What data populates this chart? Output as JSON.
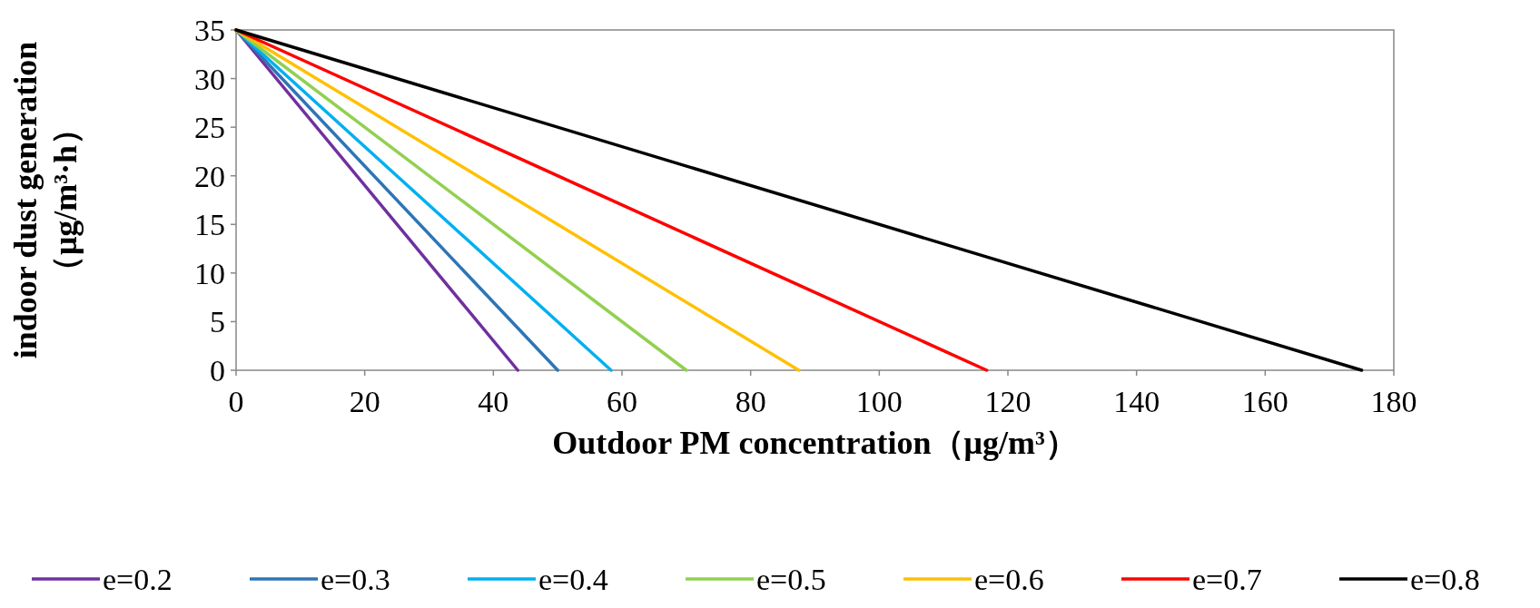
{
  "chart_data": {
    "type": "line",
    "xlabel": "Outdoor PM concentration（μg/m³）",
    "ylabel": "indoor dust generation\n（μg/m³·h）",
    "xlim": [
      0,
      180
    ],
    "xticks": [
      0,
      20,
      40,
      60,
      80,
      100,
      120,
      140,
      160,
      180
    ],
    "ylim": [
      0,
      35
    ],
    "yticks": [
      0,
      5,
      10,
      15,
      20,
      25,
      30,
      35
    ],
    "grid": false,
    "legend": "bottom",
    "marker": "none",
    "line_style": "solid",
    "series": [
      {
        "name": "e=0.2",
        "color": "#7030a0",
        "x": [
          0,
          43.8
        ],
        "values": [
          35,
          0
        ]
      },
      {
        "name": "e=0.3",
        "color": "#2e75b6",
        "x": [
          0,
          50
        ],
        "values": [
          35,
          0
        ]
      },
      {
        "name": "e=0.4",
        "color": "#00b0f0",
        "x": [
          0,
          58.3
        ],
        "values": [
          35,
          0
        ]
      },
      {
        "name": "e=0.5",
        "color": "#92d050",
        "x": [
          0,
          70
        ],
        "values": [
          35,
          0
        ]
      },
      {
        "name": "e=0.6",
        "color": "#ffc000",
        "x": [
          0,
          87.5
        ],
        "values": [
          35,
          0
        ]
      },
      {
        "name": "e=0.7",
        "color": "#ff0000",
        "x": [
          0,
          116.7
        ],
        "values": [
          35,
          0
        ]
      },
      {
        "name": "e=0.8",
        "color": "#000000",
        "x": [
          0,
          175
        ],
        "values": [
          35,
          0
        ]
      }
    ]
  }
}
